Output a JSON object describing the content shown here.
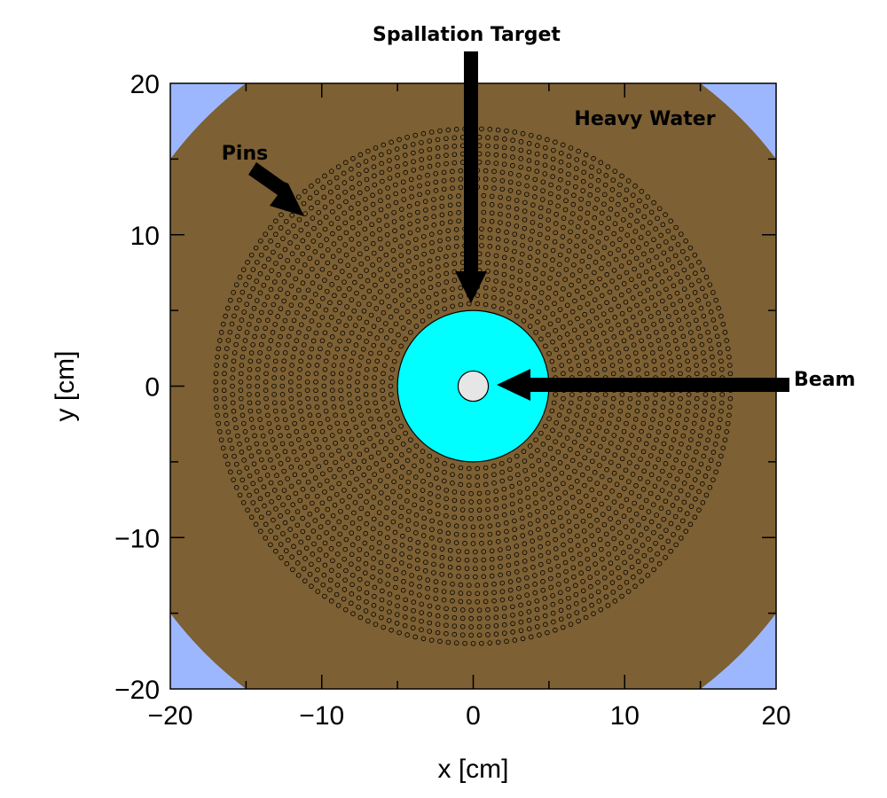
{
  "axes": {
    "x": {
      "label": "x [cm]",
      "range": [
        -20,
        20
      ],
      "ticks": [
        -20,
        -10,
        0,
        10,
        20
      ],
      "tick_labels": [
        "−20",
        "−10",
        "0",
        "10",
        "20"
      ]
    },
    "y": {
      "label": "y [cm]",
      "range": [
        -20,
        20
      ],
      "ticks": [
        -20,
        -10,
        0,
        10,
        20
      ],
      "tick_labels": [
        "−20",
        "−10",
        "0",
        "10",
        "20"
      ]
    }
  },
  "geometry": {
    "domain_half_width_cm": 20,
    "corner_cut_radius_cm": 25,
    "pin_array_radius_cm": 17,
    "target_radius_cm": 5,
    "beam_radius_cm": 1,
    "pin_radius_cm": 0.14,
    "pin_ring_spacing_cm": 0.55
  },
  "annotations": {
    "spallation_target": "Spallation Target",
    "heavy_water": "Heavy Water",
    "pins": "Pins",
    "beam": "Beam"
  },
  "colors": {
    "heavy_water": "#7d6033",
    "corner_fill": "#9db7ff",
    "target": "#00ffff",
    "beam": "#e6e6e6",
    "pins": "#000000"
  }
}
